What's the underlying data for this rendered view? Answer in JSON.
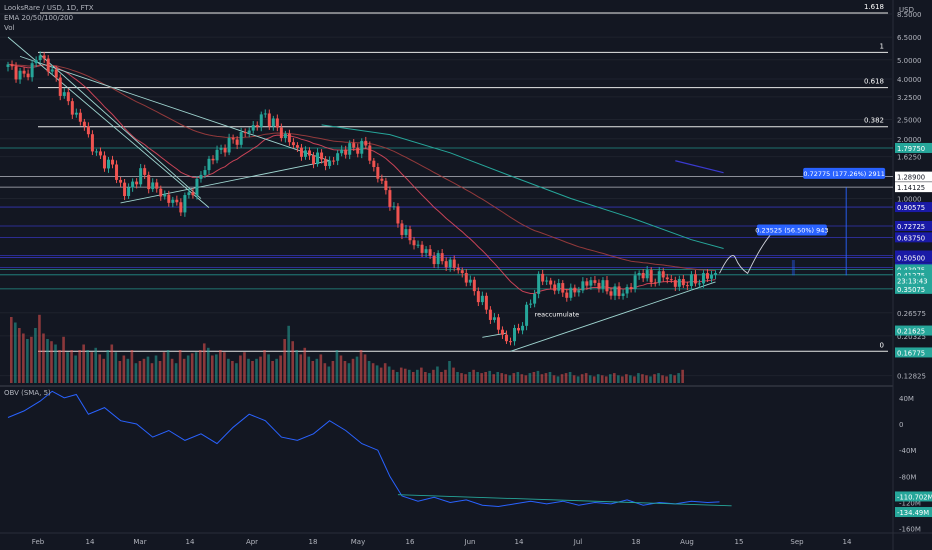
{
  "header": {
    "symbol": "LooksRare / USD, 1D, FTX",
    "ema": "EMA 20/50/100/200",
    "vol": "Vol"
  },
  "obv_header": "OBV (SMA, 5)",
  "colors": {
    "background": "#131722",
    "up": "#26a69a",
    "down": "#ef5350",
    "ema20": "#e84a5f",
    "ema50": "#a93f3f",
    "ema200": "#26a69a",
    "obv": "#2962ff",
    "level_line": "#ffffff",
    "accent_blue": "#2962ff"
  },
  "chart_data": [
    {
      "type": "candlestick",
      "title": "LooksRare / USD, 1D, FTX",
      "yscale": "log",
      "ylim": [
        0.115,
        10
      ],
      "price_unit": "USD",
      "y_tick_labels": [
        "8.5000",
        "6.5000",
        "5.0000",
        "4.0000",
        "3.2500",
        "2.5000",
        "2.0000",
        "1.6250",
        "1.0000",
        "0.26575",
        "0.20325",
        "0.12825"
      ],
      "x_tick_labels": [
        "Feb",
        "14",
        "Mar",
        "14",
        "Apr",
        "18",
        "May",
        "16",
        "Jun",
        "14",
        "Jul",
        "18",
        "Aug",
        "15",
        "Sep",
        "14"
      ],
      "fib_levels": [
        {
          "label": "1.618",
          "price": 8.6
        },
        {
          "label": "1",
          "price": 5.45
        },
        {
          "label": "0.618",
          "price": 3.62
        },
        {
          "label": "0.382",
          "price": 2.3
        },
        {
          "label": "0",
          "price": 0.17
        }
      ],
      "price_badges": [
        {
          "text": "USD",
          "kind": "unit"
        },
        {
          "text": "1.79750",
          "price": 1.7975,
          "color": "#26a69a"
        },
        {
          "text": "1.28900",
          "price": 1.289,
          "color": "#ffffff"
        },
        {
          "text": "1.14125",
          "price": 1.14125,
          "color": "#ffffff"
        },
        {
          "text": "0.90575",
          "price": 0.90575,
          "color": "#1a1aa6"
        },
        {
          "text": "0.72725",
          "price": 0.72725,
          "color": "#1a1aa6"
        },
        {
          "text": "0.63750",
          "price": 0.6375,
          "color": "#1a1aa6"
        },
        {
          "text": "0.51625",
          "price": 0.51625,
          "color": "#1a1aa6"
        },
        {
          "text": "0.50500",
          "price": 0.505,
          "color": "#1a1aa6"
        },
        {
          "text": "0.44850",
          "price": 0.4485,
          "color": "#1a1aa6"
        },
        {
          "text": "0.43975",
          "price": 0.43975,
          "color": "#26a69a"
        },
        {
          "text": "0.41275",
          "price": 0.41275,
          "color": "#26a69a"
        },
        {
          "text": "23:13:43",
          "price": 0.386,
          "color": "#26a69a"
        },
        {
          "text": "0.35075",
          "price": 0.35075,
          "color": "#26a69a"
        },
        {
          "text": "0.21625",
          "price": 0.21625,
          "color": "#26a69a"
        },
        {
          "text": "0.16775",
          "price": 0.16775,
          "color": "#26a69a"
        }
      ],
      "annotations": [
        {
          "text": "0.72775 (177.26%) 2911",
          "kind": "projection"
        },
        {
          "text": "0.23525 (56.50%) 943",
          "kind": "projection"
        },
        {
          "text": "reaccumulate",
          "kind": "label"
        }
      ],
      "ohlc_path": [
        [
          0,
          4.6
        ],
        [
          4,
          4.1
        ],
        [
          8,
          5.3
        ],
        [
          11,
          4.3
        ],
        [
          15,
          3.0
        ],
        [
          19,
          2.3
        ],
        [
          22,
          1.65
        ],
        [
          26,
          1.45
        ],
        [
          29,
          1.05
        ],
        [
          33,
          1.35
        ],
        [
          36,
          1.15
        ],
        [
          40,
          0.98
        ],
        [
          43,
          0.92
        ],
        [
          47,
          1.2
        ],
        [
          50,
          1.55
        ],
        [
          54,
          1.85
        ],
        [
          57,
          2.0
        ],
        [
          61,
          2.3
        ],
        [
          64,
          2.65
        ],
        [
          67,
          2.25
        ],
        [
          71,
          1.85
        ],
        [
          74,
          1.65
        ],
        [
          77,
          1.6
        ],
        [
          80,
          1.5
        ],
        [
          83,
          1.75
        ],
        [
          86,
          1.8
        ],
        [
          89,
          1.85
        ],
        [
          91,
          1.4
        ],
        [
          94,
          1.1
        ],
        [
          97,
          0.75
        ],
        [
          100,
          0.62
        ],
        [
          103,
          0.55
        ],
        [
          106,
          0.5
        ],
        [
          109,
          0.48
        ],
        [
          112,
          0.44
        ],
        [
          115,
          0.37
        ],
        [
          118,
          0.3
        ],
        [
          121,
          0.24
        ],
        [
          124,
          0.19
        ],
        [
          127,
          0.22
        ],
        [
          130,
          0.3
        ],
        [
          132,
          0.4
        ],
        [
          134,
          0.38
        ],
        [
          137,
          0.35
        ],
        [
          140,
          0.33
        ],
        [
          143,
          0.37
        ],
        [
          146,
          0.38
        ],
        [
          149,
          0.35
        ],
        [
          152,
          0.33
        ],
        [
          155,
          0.36
        ],
        [
          157,
          0.43
        ],
        [
          160,
          0.39
        ],
        [
          163,
          0.41
        ],
        [
          166,
          0.37
        ],
        [
          169,
          0.38
        ],
        [
          172,
          0.39
        ],
        [
          176,
          0.42
        ]
      ],
      "volume_relative": [
        0.6,
        0.55,
        0.5,
        0.45,
        0.4,
        0.42,
        0.5,
        0.62,
        0.45,
        0.4,
        0.38,
        0.35,
        0.3,
        0.42,
        0.28,
        0.3,
        0.25,
        0.3,
        0.35,
        0.3,
        0.28,
        0.32,
        0.26,
        0.22,
        0.3,
        0.35,
        0.28,
        0.2,
        0.25,
        0.22,
        0.3,
        0.18,
        0.2,
        0.22,
        0.24,
        0.18,
        0.25,
        0.2,
        0.28,
        0.3,
        0.22,
        0.18,
        0.3,
        0.22,
        0.25,
        0.27,
        0.28,
        0.3,
        0.36,
        0.32,
        0.25,
        0.26,
        0.3,
        0.28,
        0.22,
        0.2,
        0.18,
        0.25,
        0.28,
        0.22,
        0.2,
        0.22,
        0.24,
        0.3,
        0.26,
        0.2,
        0.22,
        0.25,
        0.4,
        0.52,
        0.38,
        0.3,
        0.26,
        0.32,
        0.24,
        0.2,
        0.22,
        0.26,
        0.18,
        0.15,
        0.2,
        0.3,
        0.25,
        0.2,
        0.18,
        0.22,
        0.24,
        0.3,
        0.26,
        0.2,
        0.18,
        0.16,
        0.14,
        0.18,
        0.15,
        0.12,
        0.1,
        0.14,
        0.13,
        0.12,
        0.1,
        0.12,
        0.14,
        0.1,
        0.09,
        0.12,
        0.15,
        0.1,
        0.12,
        0.2,
        0.14,
        0.1,
        0.09,
        0.08,
        0.1,
        0.12,
        0.1,
        0.09,
        0.1,
        0.11,
        0.08,
        0.1,
        0.09,
        0.08,
        0.07,
        0.09,
        0.1,
        0.08,
        0.07,
        0.09,
        0.1,
        0.11,
        0.08,
        0.09,
        0.1,
        0.07,
        0.06,
        0.08,
        0.09,
        0.1,
        0.07,
        0.06,
        0.08,
        0.09,
        0.07,
        0.06,
        0.08,
        0.07,
        0.06,
        0.08,
        0.09,
        0.07,
        0.06,
        0.08,
        0.07,
        0.06,
        0.09,
        0.08,
        0.07,
        0.06,
        0.08,
        0.09,
        0.07,
        0.06,
        0.08,
        0.07,
        0.09,
        0.12
      ]
    },
    {
      "type": "line",
      "title": "OBV (SMA, 5)",
      "y_tick_labels": [
        "40M",
        "0",
        "-40M",
        "-80M",
        "-120M",
        "-160M"
      ],
      "ylim": [
        -165,
        55
      ],
      "unit": "M",
      "badges": [
        {
          "text": "-110.702M",
          "value": -110.702
        },
        {
          "text": "-134.49M",
          "value": -134.49
        }
      ],
      "series": [
        {
          "values": [
            [
              0,
              10
            ],
            [
              4,
              20
            ],
            [
              8,
              35
            ],
            [
              11,
              50
            ],
            [
              14,
              40
            ],
            [
              17,
              45
            ],
            [
              20,
              15
            ],
            [
              24,
              25
            ],
            [
              28,
              5
            ],
            [
              32,
              0
            ],
            [
              36,
              -20
            ],
            [
              40,
              -10
            ],
            [
              44,
              -25
            ],
            [
              48,
              -15
            ],
            [
              52,
              -30
            ],
            [
              56,
              -5
            ],
            [
              60,
              15
            ],
            [
              64,
              5
            ],
            [
              68,
              -20
            ],
            [
              72,
              -25
            ],
            [
              76,
              -15
            ],
            [
              80,
              5
            ],
            [
              84,
              -10
            ],
            [
              88,
              -30
            ],
            [
              92,
              -40
            ],
            [
              95,
              -80
            ],
            [
              98,
              -110
            ],
            [
              102,
              -118
            ],
            [
              106,
              -112
            ],
            [
              110,
              -120
            ],
            [
              114,
              -116
            ],
            [
              118,
              -124
            ],
            [
              122,
              -126
            ],
            [
              126,
              -122
            ],
            [
              130,
              -118
            ],
            [
              134,
              -122
            ],
            [
              138,
              -118
            ],
            [
              142,
              -124
            ],
            [
              146,
              -120
            ],
            [
              150,
              -122
            ],
            [
              154,
              -116
            ],
            [
              158,
              -124
            ],
            [
              162,
              -120
            ],
            [
              166,
              -122
            ],
            [
              170,
              -118
            ],
            [
              174,
              -120
            ],
            [
              177,
              -119
            ]
          ]
        }
      ]
    }
  ]
}
